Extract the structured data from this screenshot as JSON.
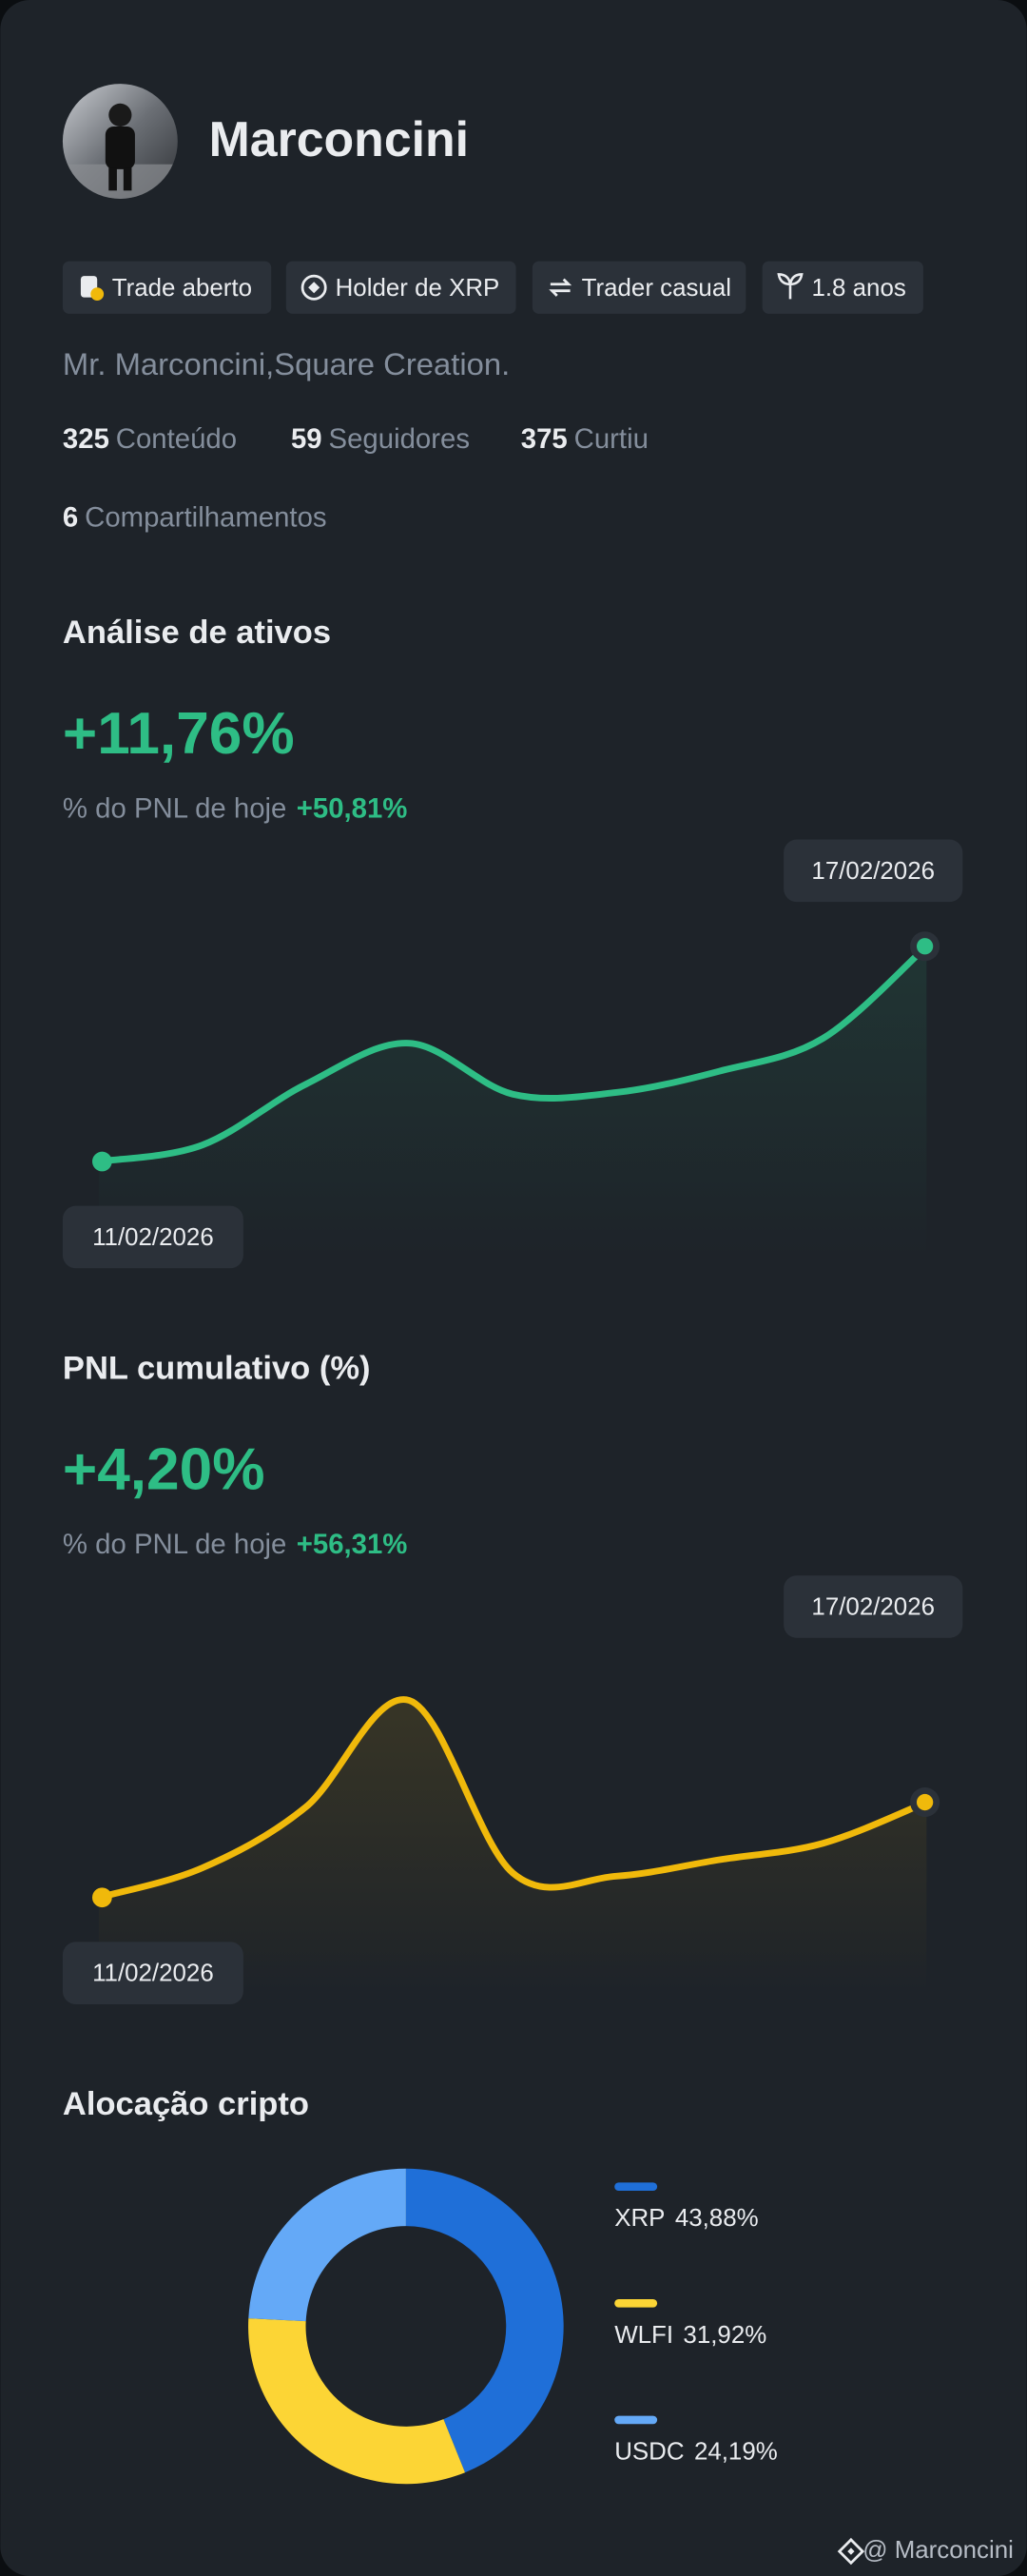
{
  "profile": {
    "name": "Marconcini",
    "tags": [
      "Trade aberto",
      "Holder de XRP",
      "Trader casual",
      "1.8 anos"
    ],
    "bio": "Mr. Marconcini,Square Creation.",
    "stats": [
      {
        "value": 325,
        "label": "Conteúdo"
      },
      {
        "value": 59,
        "label": "Seguidores"
      },
      {
        "value": 375,
        "label": "Curtiu"
      },
      {
        "value": 6,
        "label": "Compartilhamentos"
      }
    ]
  },
  "charts": [
    {
      "type": "line",
      "title": "Análise de ativos",
      "headline": "+11,76%",
      "subtitle": "% do PNL de hoje",
      "change": "+50,81%",
      "start_label": "11/02/2026",
      "end_label": "17/02/2026",
      "color": "#2ebd85",
      "values": [
        53,
        63,
        100,
        125,
        94,
        95,
        108,
        128,
        184
      ]
    },
    {
      "type": "line",
      "title": "PNL cumulativo (%)",
      "headline": "+4,20%",
      "subtitle": "% do PNL de hoje",
      "change": "+56,31%",
      "start_label": "11/02/2026",
      "end_label": "17/02/2026",
      "color": "#f0b90b",
      "values": [
        53,
        71,
        108,
        173,
        68,
        66,
        76,
        86,
        111
      ]
    }
  ],
  "allocation": {
    "type": "donut",
    "title": "Alocação cripto",
    "names": [
      "XRP",
      "WLFI",
      "USDC"
    ],
    "values": [
      43.88,
      31.92,
      24.19
    ],
    "value_labels": [
      "43,88%",
      "31,92%",
      "24,19%"
    ],
    "colors": [
      "#1f6fd8",
      "#fcd535",
      "#64a9f7"
    ]
  },
  "footer": "@ Marconcini"
}
